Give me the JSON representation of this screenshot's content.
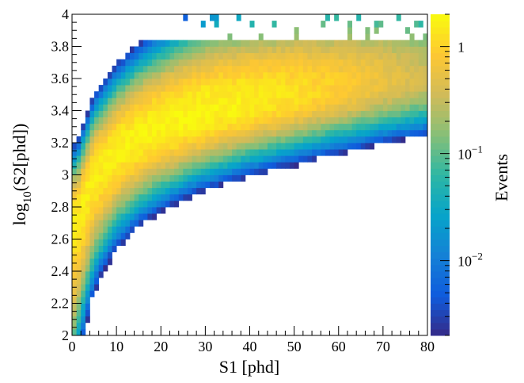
{
  "chart_data": {
    "type": "heatmap",
    "title": "",
    "xlabel": "S1 [phd]",
    "ylabel_parts": [
      "log",
      "10",
      "(S2[phd])"
    ],
    "zlabel": "Events",
    "xlim": [
      0,
      80
    ],
    "ylim": [
      2,
      4
    ],
    "xbin_width": 1,
    "ybin_width": 0.04,
    "z_scale": "log",
    "zlim": [
      0.002,
      2
    ],
    "x_ticks": [
      0,
      10,
      20,
      30,
      40,
      50,
      60,
      70,
      80
    ],
    "x_tick_labels": [
      "0",
      "10",
      "20",
      "30",
      "40",
      "50",
      "60",
      "70",
      "80"
    ],
    "y_ticks": [
      2,
      2.2,
      2.4,
      2.6,
      2.8,
      3,
      3.2,
      3.4,
      3.6,
      3.8,
      4
    ],
    "y_tick_labels": [
      "2",
      "2.2",
      "2.4",
      "2.6",
      "2.8",
      "3",
      "3.2",
      "3.4",
      "3.6",
      "3.8",
      "4"
    ],
    "z_ticks": [
      {
        "value": 1,
        "label": "1"
      },
      {
        "value": 0.1,
        "label": "10",
        "exponent": "−1"
      },
      {
        "value": 0.01,
        "label": "10",
        "exponent": "−2"
      }
    ],
    "grid": false,
    "colormap": [
      "#352a87",
      "#0f5cdd",
      "#1481d6",
      "#06a4ca",
      "#2eb7a4",
      "#87bf77",
      "#d1bb59",
      "#fec832",
      "#f9fb0e"
    ],
    "band": {
      "description": "Events form a curved band; ridge of the band in data units",
      "ridge_points": [
        {
          "s1": 1,
          "log10_s2": 2.72
        },
        {
          "s1": 5,
          "log10_s2": 3.0
        },
        {
          "s1": 10,
          "log10_s2": 3.15
        },
        {
          "s1": 15,
          "log10_s2": 3.24
        },
        {
          "s1": 20,
          "log10_s2": 3.3
        },
        {
          "s1": 25,
          "log10_s2": 3.35
        },
        {
          "s1": 30,
          "log10_s2": 3.39
        },
        {
          "s1": 40,
          "log10_s2": 3.45
        },
        {
          "s1": 50,
          "log10_s2": 3.5
        },
        {
          "s1": 60,
          "log10_s2": 3.54
        },
        {
          "s1": 70,
          "log10_s2": 3.58
        },
        {
          "s1": 80,
          "log10_s2": 3.6
        }
      ],
      "peak_density": {
        "s1": 25,
        "log10_s2": 3.34,
        "events": 1.8
      }
    }
  }
}
